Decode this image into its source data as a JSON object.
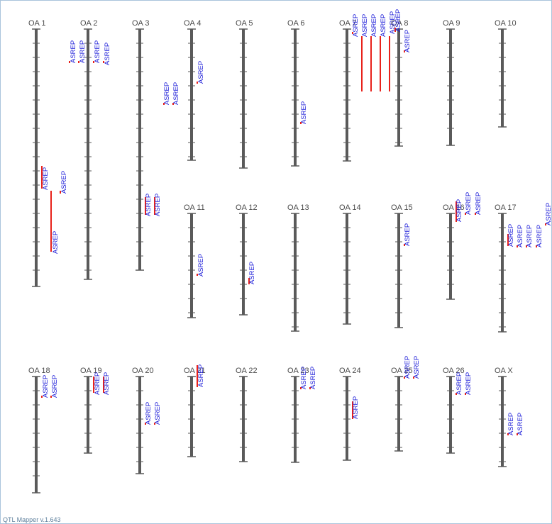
{
  "app": {
    "footer": "QTL Mapper v.1.643"
  },
  "colors": {
    "chromosome": "#5a5a5a",
    "qtl_bar": "#e8221b",
    "trait_label": "#1a1ad8",
    "label": "#4a4a4a"
  },
  "chromosomes": [
    {
      "label": "OA 1",
      "qtls": [
        {
          "trait": "ASREP"
        },
        {
          "trait": "ASREP"
        },
        {
          "trait": "ASREP"
        }
      ]
    },
    {
      "label": "OA 2",
      "qtls": [
        {
          "trait": "ASREP"
        },
        {
          "trait": "ASREP"
        },
        {
          "trait": "ASREP"
        },
        {
          "trait": "ASREP"
        }
      ]
    },
    {
      "label": "OA 3",
      "qtls": [
        {
          "trait": "ASREP"
        },
        {
          "trait": "ASREP"
        }
      ]
    },
    {
      "label": "OA 4",
      "qtls": [
        {
          "trait": "ASREP"
        },
        {
          "trait": "ASREP"
        },
        {
          "trait": "ASREP"
        }
      ]
    },
    {
      "label": "OA 5",
      "qtls": []
    },
    {
      "label": "OA 6",
      "qtls": [
        {
          "trait": "ASREP"
        }
      ]
    },
    {
      "label": "OA 7",
      "qtls": [
        {
          "trait": "ASREP"
        },
        {
          "trait": "ASREP"
        },
        {
          "trait": "ASREP"
        },
        {
          "trait": "ASREP"
        },
        {
          "trait": "ASREP"
        }
      ]
    },
    {
      "label": "OA 8",
      "qtls": [
        {
          "trait": "ASREP"
        },
        {
          "trait": "ASREP"
        }
      ]
    },
    {
      "label": "OA 9",
      "qtls": []
    },
    {
      "label": "OA 10",
      "qtls": []
    },
    {
      "label": "OA 11",
      "qtls": [
        {
          "trait": "ASREP"
        }
      ]
    },
    {
      "label": "OA 12",
      "qtls": [
        {
          "trait": "ASREP"
        }
      ]
    },
    {
      "label": "OA 13",
      "qtls": []
    },
    {
      "label": "OA 14",
      "qtls": []
    },
    {
      "label": "OA 15",
      "qtls": [
        {
          "trait": "ASREP"
        }
      ]
    },
    {
      "label": "OA 16",
      "qtls": [
        {
          "trait": "ASREP"
        },
        {
          "trait": "ASREP"
        },
        {
          "trait": "ASREP"
        }
      ]
    },
    {
      "label": "OA 17",
      "qtls": [
        {
          "trait": "ASREP"
        },
        {
          "trait": "ASREP"
        },
        {
          "trait": "ASREP"
        },
        {
          "trait": "ASREP"
        },
        {
          "trait": "ASREP"
        }
      ]
    },
    {
      "label": "OA 18",
      "qtls": [
        {
          "trait": "ASREP"
        },
        {
          "trait": "ASREP"
        }
      ]
    },
    {
      "label": "OA 19",
      "qtls": [
        {
          "trait": "ASREP"
        },
        {
          "trait": "ASREP"
        }
      ]
    },
    {
      "label": "OA 20",
      "qtls": [
        {
          "trait": "ASREP"
        },
        {
          "trait": "ASREP"
        }
      ]
    },
    {
      "label": "OA 21",
      "qtls": [
        {
          "trait": "ASREP"
        }
      ]
    },
    {
      "label": "OA 22",
      "qtls": []
    },
    {
      "label": "OA 23",
      "qtls": [
        {
          "trait": "ASREP"
        },
        {
          "trait": "ASREP"
        }
      ]
    },
    {
      "label": "OA 24",
      "qtls": [
        {
          "trait": "ASREP"
        }
      ]
    },
    {
      "label": "OA 25",
      "qtls": [
        {
          "trait": "ASREP"
        },
        {
          "trait": "ASREP"
        }
      ]
    },
    {
      "label": "OA 26",
      "qtls": [
        {
          "trait": "ASREP"
        },
        {
          "trait": "ASREP"
        }
      ]
    },
    {
      "label": "OA X",
      "qtls": [
        {
          "trait": "ASREP"
        },
        {
          "trait": "ASREP"
        }
      ]
    }
  ]
}
